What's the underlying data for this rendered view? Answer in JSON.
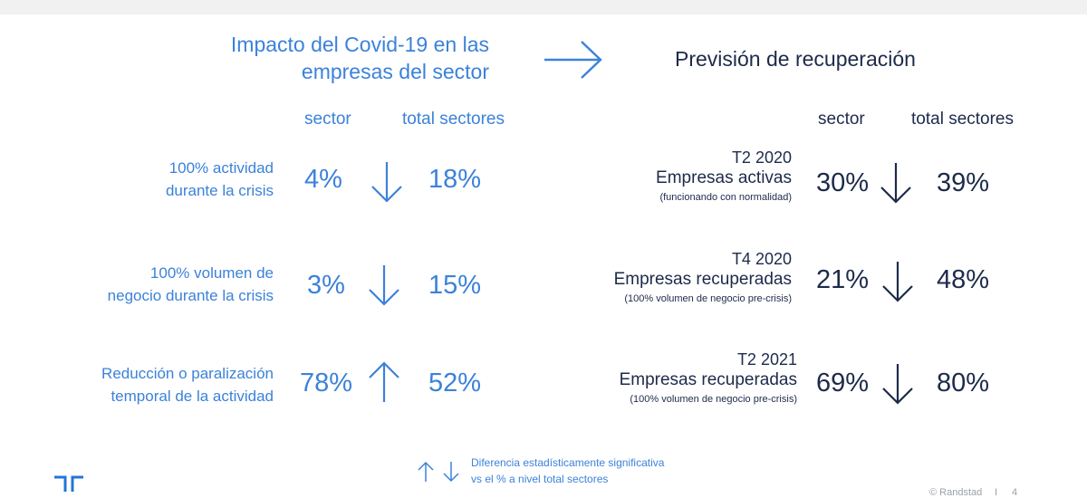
{
  "left": {
    "title_line1": "Impacto del Covid-19 en las",
    "title_line2": "empresas del sector",
    "col_sector": "sector",
    "col_total": "total sectores",
    "rows": [
      {
        "label_line1": "100% actividad",
        "label_line2": "durante la crisis",
        "sector": "4%",
        "total": "18%",
        "direction": "down"
      },
      {
        "label_line1": "100% volumen de",
        "label_line2": "negocio durante la crisis",
        "sector": "3%",
        "total": "15%",
        "direction": "down"
      },
      {
        "label_line1": "Reducción o paralización",
        "label_line2": "temporal de la actividad",
        "sector": "78%",
        "total": "52%",
        "direction": "up"
      }
    ]
  },
  "right": {
    "title": "Previsión de recuperación",
    "col_sector": "sector",
    "col_total": "total sectores",
    "rows": [
      {
        "period": "T2 2020",
        "state": "Empresas activas",
        "note": "(funcionando con normalidad)",
        "sector": "30%",
        "total": "39%",
        "direction": "down"
      },
      {
        "period": "T4 2020",
        "state": "Empresas recuperadas",
        "note": "(100% volumen de negocio pre-crisis)",
        "sector": "21%",
        "total": "48%",
        "direction": "down"
      },
      {
        "period": "T2 2021",
        "state": "Empresas recuperadas",
        "note": "(100% volumen de negocio pre-crisis)",
        "sector": "69%",
        "total": "80%",
        "direction": "down"
      }
    ]
  },
  "legend": {
    "line1": "Diferencia estadísticamente significativa",
    "line2": "vs el % a nivel total sectores"
  },
  "footer": {
    "copyright": "© Randstad",
    "page_number": "4"
  },
  "colors": {
    "accent": "#3b82d9",
    "navy": "#1d2a4a"
  }
}
